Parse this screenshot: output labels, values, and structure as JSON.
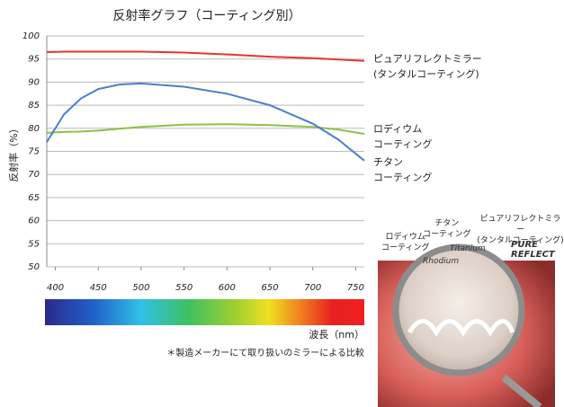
{
  "chart_data": {
    "type": "line",
    "title": "反射率グラフ（コーティング別）",
    "y_label": "反射率（%）",
    "x_label": "波長（nm）",
    "note": "＊製造メーカーにて取り扱いのミラーによる比較",
    "x": [
      390,
      410,
      430,
      450,
      475,
      500,
      550,
      600,
      650,
      700,
      730,
      760
    ],
    "series": [
      {
        "name": "ピュアリフレクトミラー\n(タンタルコーティング)",
        "color": "#e8342a",
        "values": [
          96.5,
          96.6,
          96.6,
          96.6,
          96.6,
          96.6,
          96.4,
          96.0,
          95.5,
          95.2,
          94.9,
          94.6
        ]
      },
      {
        "name": "ロディウム\nコーティング",
        "color": "#8cc04b",
        "values": [
          79,
          79.2,
          79.3,
          79.5,
          79.9,
          80.3,
          80.8,
          80.9,
          80.7,
          80.3,
          79.7,
          78.8
        ]
      },
      {
        "name": "チタン\nコーティング",
        "color": "#4a7fcb",
        "values": [
          77,
          83,
          86.5,
          88.5,
          89.5,
          89.7,
          89,
          87.5,
          85,
          81,
          77.5,
          73
        ]
      }
    ],
    "xlim": [
      390,
      760
    ],
    "xticks": [
      400,
      450,
      500,
      550,
      600,
      650,
      700,
      750
    ],
    "ylim": [
      50,
      100
    ],
    "yticks": [
      50,
      55,
      60,
      65,
      70,
      75,
      80,
      85,
      90,
      95,
      100
    ],
    "grid": true,
    "image_labels": [
      {
        "text": "ロディウム\nコーティング",
        "sub": "Rhodium"
      },
      {
        "text": "チタン\nコーティング",
        "sub": "Titanium"
      },
      {
        "text": "ピュアリフレクトミラー\n(タンタルコーティング)",
        "sub": "PURE REFLECT"
      }
    ]
  }
}
